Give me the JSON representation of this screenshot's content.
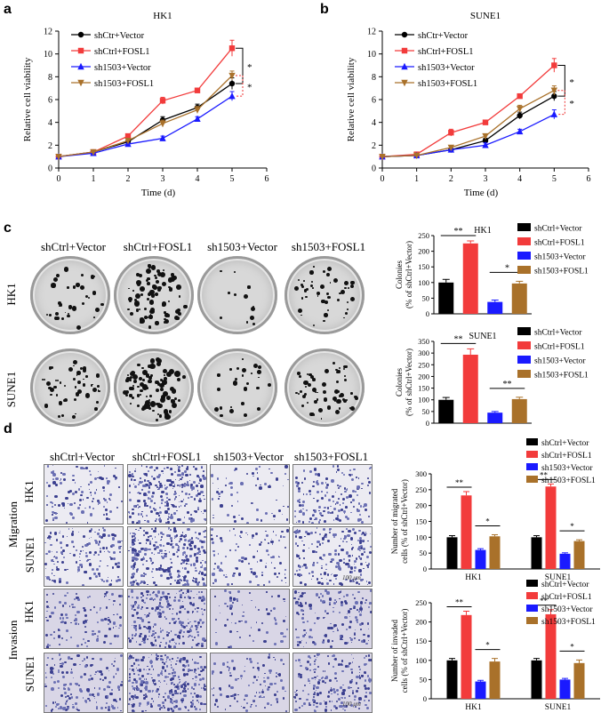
{
  "panels": {
    "a": {
      "label": "a"
    },
    "b": {
      "label": "b"
    },
    "c": {
      "label": "c"
    },
    "d": {
      "label": "d"
    }
  },
  "groups": [
    "shCtrl+Vector",
    "shCtrl+FOSL1",
    "sh1503+Vector",
    "sh1503+FOSL1"
  ],
  "colony_panel": {
    "columns": [
      "shCtrl+Vector",
      "shCtrl+FOSL1",
      "sh1503+Vector",
      "sh1503+FOSL1"
    ],
    "rows": [
      "HK1",
      "SUNE1"
    ]
  },
  "transwell_panel": {
    "columns": [
      "shCtrl+Vector",
      "shCtrl+FOSL1",
      "sh1503+Vector",
      "sh1503+FOSL1"
    ],
    "sections": [
      "Migration",
      "Invasion"
    ],
    "rows": [
      "HK1",
      "SUNE1"
    ],
    "scale_bar": "100 μm"
  },
  "colors": {
    "black": "#000000",
    "red": "#f23b3b",
    "blue": "#1a1aff",
    "brown": "#a9712a"
  },
  "chart_data": [
    {
      "id": "a",
      "type": "line",
      "title": "HK1",
      "xlabel": "Time (d)",
      "ylabel": "Relative cell viability",
      "xlim": [
        0,
        6
      ],
      "ylim": [
        0,
        12
      ],
      "xticks": [
        0,
        1,
        2,
        3,
        4,
        5,
        6
      ],
      "yticks": [
        0,
        2,
        4,
        6,
        8,
        10,
        12
      ],
      "x": [
        0,
        1,
        2,
        3,
        4,
        5
      ],
      "series": [
        {
          "name": "shCtr+Vector",
          "color": "#000000",
          "marker": "circle",
          "values": [
            1,
            1.4,
            2.3,
            4.2,
            5.3,
            7.4
          ],
          "errors": [
            0.1,
            0.1,
            0.2,
            0.3,
            0.3,
            0.5
          ]
        },
        {
          "name": "shCtrl+FOSL1",
          "color": "#f23b3b",
          "marker": "square",
          "values": [
            1,
            1.4,
            2.8,
            5.9,
            6.8,
            10.5
          ],
          "errors": [
            0.1,
            0.1,
            0.2,
            0.3,
            0.2,
            0.7
          ]
        },
        {
          "name": "sh1503+Vector",
          "color": "#1a1aff",
          "marker": "triangle-up",
          "values": [
            1,
            1.3,
            2.1,
            2.6,
            4.3,
            6.3
          ],
          "errors": [
            0.1,
            0.1,
            0.1,
            0.2,
            0.2,
            0.4
          ]
        },
        {
          "name": "sh1503+FOSL1",
          "color": "#a9712a",
          "marker": "triangle-down",
          "values": [
            1,
            1.4,
            2.4,
            3.9,
            5.1,
            8.1
          ],
          "errors": [
            0.1,
            0.1,
            0.2,
            0.3,
            0.3,
            0.4
          ]
        }
      ],
      "annotations": [
        "*",
        "*"
      ]
    },
    {
      "id": "b",
      "type": "line",
      "title": "SUNE1",
      "xlabel": "Time (d)",
      "ylabel": "Relative cell viability",
      "xlim": [
        0,
        6
      ],
      "ylim": [
        0,
        12
      ],
      "xticks": [
        0,
        1,
        2,
        3,
        4,
        5,
        6
      ],
      "yticks": [
        0,
        2,
        4,
        6,
        8,
        10,
        12
      ],
      "x": [
        0,
        1,
        2,
        3,
        4,
        5
      ],
      "series": [
        {
          "name": "shCtr+Vector",
          "color": "#000000",
          "marker": "circle",
          "values": [
            1,
            1.1,
            1.6,
            2.4,
            4.6,
            6.3
          ],
          "errors": [
            0.1,
            0.1,
            0.1,
            0.2,
            0.3,
            0.4
          ]
        },
        {
          "name": "shCtrl+FOSL1",
          "color": "#f23b3b",
          "marker": "square",
          "values": [
            1,
            1.2,
            3.1,
            4.0,
            6.3,
            9.0
          ],
          "errors": [
            0.1,
            0.1,
            0.3,
            0.2,
            0.2,
            0.6
          ]
        },
        {
          "name": "sh1503+Vector",
          "color": "#1a1aff",
          "marker": "triangle-up",
          "values": [
            1,
            1.1,
            1.6,
            2.0,
            3.2,
            4.7
          ],
          "errors": [
            0.1,
            0.1,
            0.1,
            0.2,
            0.2,
            0.4
          ]
        },
        {
          "name": "sh1503+FOSL1",
          "color": "#a9712a",
          "marker": "triangle-down",
          "values": [
            1,
            1.1,
            1.8,
            2.8,
            5.2,
            6.8
          ],
          "errors": [
            0.1,
            0.1,
            0.1,
            0.2,
            0.3,
            0.4
          ]
        }
      ],
      "annotations": [
        "*",
        "*"
      ]
    },
    {
      "id": "c1",
      "type": "bar",
      "title": "HK1",
      "ylabel": "Colonies\n(% of shCtrl+Vector)",
      "ylim": [
        0,
        250
      ],
      "yticks": [
        0,
        50,
        100,
        150,
        200,
        250
      ],
      "categories": [
        "shCtrl+Vector",
        "shCtrl+FOSL1",
        "sh1503+Vector",
        "sh1503+FOSL1"
      ],
      "values": [
        100,
        225,
        38,
        97
      ],
      "errors": [
        10,
        8,
        6,
        7
      ],
      "colors": [
        "#000000",
        "#f23b3b",
        "#1a1aff",
        "#a9712a"
      ],
      "annotations": [
        "**",
        "*"
      ]
    },
    {
      "id": "c2",
      "type": "bar",
      "title": "SUNE1",
      "ylabel": "Colonies\n(% of shCtrl+Vector)",
      "ylim": [
        0,
        350
      ],
      "yticks": [
        0,
        50,
        100,
        150,
        200,
        250,
        300,
        350
      ],
      "categories": [
        "shCtrl+Vector",
        "shCtrl+FOSL1",
        "sh1503+Vector",
        "sh1503+FOSL1"
      ],
      "values": [
        100,
        293,
        45,
        103
      ],
      "errors": [
        10,
        25,
        5,
        8
      ],
      "colors": [
        "#000000",
        "#f23b3b",
        "#1a1aff",
        "#a9712a"
      ],
      "annotations": [
        "**",
        "**"
      ]
    },
    {
      "id": "d1",
      "type": "bar",
      "ylabel": "Number of migrated\ncells (% of shCtrl+Vector)",
      "ylim": [
        0,
        300
      ],
      "yticks": [
        0,
        50,
        100,
        150,
        200,
        250,
        300
      ],
      "categories": [
        "HK1",
        "SUNE1"
      ],
      "series": [
        {
          "name": "shCtrl+Vector",
          "color": "#000000",
          "values": [
            100,
            100
          ],
          "errors": [
            5,
            5
          ]
        },
        {
          "name": "shCtrl+FOSL1",
          "color": "#f23b3b",
          "values": [
            232,
            260
          ],
          "errors": [
            12,
            8
          ]
        },
        {
          "name": "sh1503+Vector",
          "color": "#1a1aff",
          "values": [
            60,
            48
          ],
          "errors": [
            4,
            3
          ]
        },
        {
          "name": "sh1503+FOSL1",
          "color": "#a9712a",
          "values": [
            103,
            88
          ],
          "errors": [
            5,
            4
          ]
        }
      ],
      "annotations": [
        "**",
        "*",
        "**",
        "*"
      ]
    },
    {
      "id": "d2",
      "type": "bar",
      "ylabel": "Number of invaded\ncells (% of shCtrl+Vector)",
      "ylim": [
        0,
        250
      ],
      "yticks": [
        0,
        50,
        100,
        150,
        200,
        250
      ],
      "categories": [
        "HK1",
        "SUNE1"
      ],
      "series": [
        {
          "name": "shCtrl+Vector",
          "color": "#000000",
          "values": [
            100,
            100
          ],
          "errors": [
            5,
            5
          ]
        },
        {
          "name": "shCtrl+FOSL1",
          "color": "#f23b3b",
          "values": [
            218,
            220
          ],
          "errors": [
            10,
            12
          ]
        },
        {
          "name": "sh1503+Vector",
          "color": "#1a1aff",
          "values": [
            45,
            50
          ],
          "errors": [
            3,
            3
          ]
        },
        {
          "name": "sh1503+FOSL1",
          "color": "#a9712a",
          "values": [
            97,
            93
          ],
          "errors": [
            8,
            8
          ]
        }
      ],
      "annotations": [
        "**",
        "*",
        "**",
        "*"
      ]
    }
  ]
}
